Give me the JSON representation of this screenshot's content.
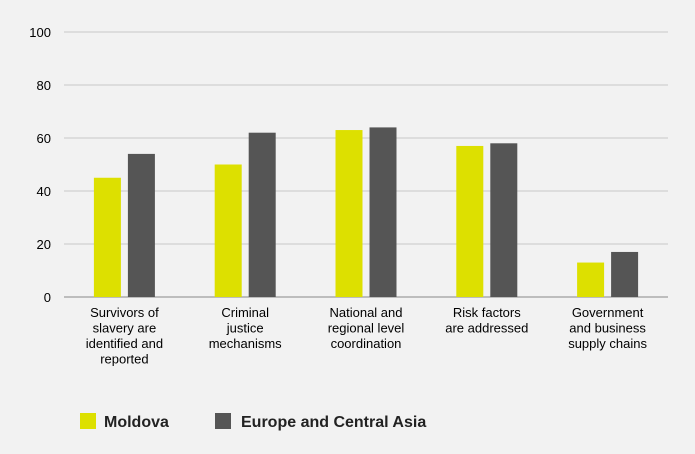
{
  "chart_data": {
    "type": "bar",
    "categories": [
      "Survivors of slavery are identified and reported",
      "Criminal justice mechanisms",
      "National and regional level coordination",
      "Risk factors are addressed",
      "Government and business supply chains"
    ],
    "category_lines": [
      [
        "Survivors of",
        "slavery are",
        "identified and",
        "reported"
      ],
      [
        "Criminal",
        "justice",
        "mechanisms"
      ],
      [
        "National and",
        "regional level",
        "coordination"
      ],
      [
        "Risk factors",
        "are addressed"
      ],
      [
        "Government",
        "and business",
        "supply chains"
      ]
    ],
    "series": [
      {
        "name": "Moldova",
        "color": "#dde000",
        "values": [
          45,
          50,
          63,
          57,
          13
        ]
      },
      {
        "name": "Europe and Central Asia",
        "color": "#555555",
        "values": [
          54,
          62,
          64,
          58,
          17
        ]
      }
    ],
    "y_ticks": [
      "0",
      "20",
      "40",
      "60",
      "80",
      "100"
    ],
    "ylim": [
      0,
      100
    ],
    "grid": true,
    "legend_position": "bottom-left",
    "colors": {
      "background": "#f2f2f2",
      "grid": "#c8c8c8",
      "axis": "#888888"
    }
  }
}
